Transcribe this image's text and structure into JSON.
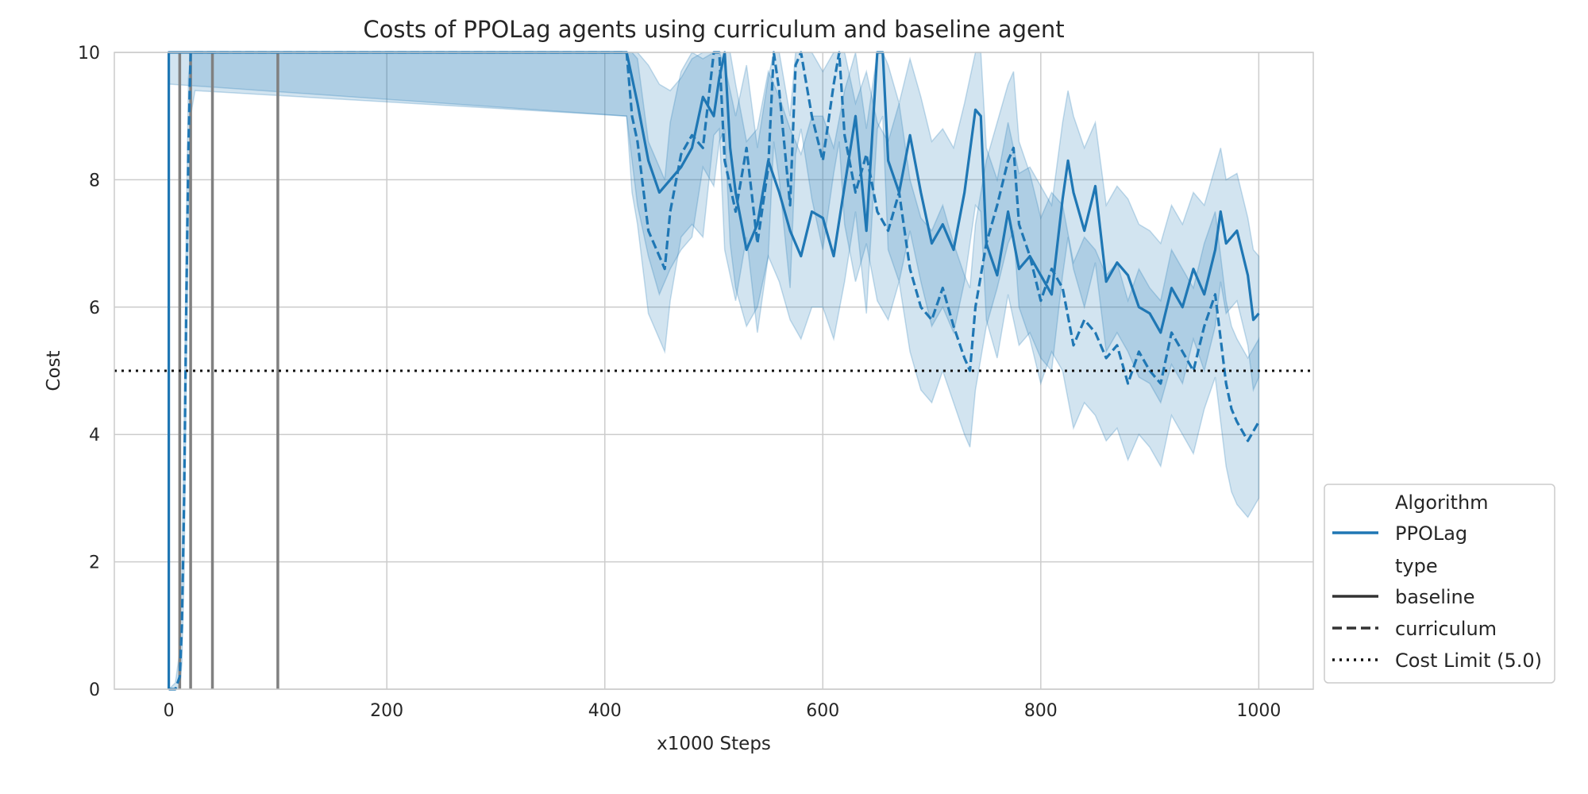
{
  "chart_data": {
    "type": "line",
    "title": "Costs of PPOLag agents using curriculum and baseline agent",
    "xlabel": "x1000 Steps",
    "ylabel": "Cost",
    "xlim": [
      -50,
      1050
    ],
    "ylim": [
      0,
      10
    ],
    "x_ticks": [
      "0",
      "200",
      "400",
      "600",
      "800",
      "1000"
    ],
    "y_ticks": [
      "0",
      "2",
      "4",
      "6",
      "8",
      "10"
    ],
    "grid": true,
    "legend_position": "lower-right outside",
    "colors": {
      "series": "#1f77b4",
      "band": "#1f77b4",
      "limit": "#111111",
      "marker": "#808080",
      "legend_dark": "#333333"
    },
    "legend": {
      "title_algorithm": "Algorithm",
      "algorithm": "PPOLag",
      "title_type": "type",
      "baseline": "baseline",
      "curriculum": "curriculum",
      "cost_limit": "Cost Limit (5.0)"
    },
    "cost_limit": 5.0,
    "vertical_markers_x": [
      10,
      20,
      40,
      100
    ],
    "series": [
      {
        "name": "baseline",
        "style": "solid",
        "x": [
          0,
          0,
          2,
          420,
          430,
          440,
          450,
          460,
          470,
          480,
          490,
          500,
          505,
          510,
          515,
          520,
          530,
          540,
          550,
          560,
          570,
          580,
          590,
          600,
          610,
          620,
          630,
          640,
          650,
          655,
          660,
          670,
          680,
          690,
          700,
          710,
          720,
          730,
          740,
          745,
          750,
          760,
          770,
          780,
          790,
          800,
          810,
          820,
          825,
          830,
          840,
          850,
          860,
          870,
          880,
          890,
          900,
          910,
          920,
          930,
          940,
          950,
          960,
          965,
          970,
          980,
          990,
          995,
          1000
        ],
        "y": [
          0,
          10,
          10,
          10,
          9.2,
          8.3,
          7.8,
          8.0,
          8.2,
          8.5,
          9.3,
          9.0,
          9.6,
          10.0,
          8.5,
          7.8,
          6.9,
          7.3,
          8.3,
          7.8,
          7.2,
          6.8,
          7.5,
          7.4,
          6.8,
          7.9,
          9.0,
          7.2,
          10.0,
          10.0,
          8.3,
          7.8,
          8.7,
          7.8,
          7.0,
          7.3,
          6.9,
          7.8,
          9.1,
          9.0,
          7.0,
          6.5,
          7.5,
          6.6,
          6.8,
          6.5,
          6.2,
          7.7,
          8.3,
          7.8,
          7.2,
          7.9,
          6.4,
          6.7,
          6.5,
          6.0,
          5.9,
          5.6,
          6.3,
          6.0,
          6.6,
          6.2,
          6.9,
          7.5,
          7.0,
          7.2,
          6.5,
          5.8,
          5.9
        ],
        "band_upper": [
          10,
          10,
          10,
          10,
          10,
          9.8,
          9.5,
          9.4,
          9.6,
          9.9,
          10,
          10,
          10,
          10,
          10,
          9.5,
          8.6,
          8.8,
          9.7,
          9.3,
          8.8,
          8.4,
          9.0,
          9.0,
          8.5,
          9.4,
          10,
          8.8,
          10,
          10,
          9.8,
          9.2,
          9.9,
          9.3,
          8.6,
          8.8,
          8.5,
          9.2,
          10,
          10,
          8.5,
          8.0,
          8.9,
          8.1,
          8.2,
          7.9,
          7.6,
          8.9,
          9.4,
          9.0,
          8.5,
          8.9,
          7.6,
          7.9,
          7.7,
          7.3,
          7.2,
          7.0,
          7.6,
          7.3,
          7.8,
          7.6,
          8.2,
          8.5,
          8.0,
          8.1,
          7.4,
          6.9,
          6.8
        ],
        "band_lower": [
          0,
          9.5,
          9.5,
          9.0,
          7.6,
          6.8,
          6.2,
          6.6,
          6.9,
          7.1,
          8.2,
          7.9,
          8.6,
          8.8,
          7.0,
          6.3,
          5.7,
          6.0,
          6.8,
          6.4,
          5.8,
          5.5,
          6.0,
          6.0,
          5.5,
          6.4,
          7.5,
          5.9,
          8.8,
          9.0,
          6.9,
          6.4,
          7.2,
          6.4,
          5.7,
          6.0,
          5.6,
          6.4,
          7.6,
          7.5,
          5.8,
          5.2,
          6.2,
          5.4,
          5.6,
          5.2,
          5.0,
          6.5,
          7.1,
          6.6,
          6.0,
          6.7,
          5.3,
          5.6,
          5.3,
          4.9,
          4.8,
          4.5,
          5.1,
          4.8,
          5.5,
          5.0,
          5.7,
          6.4,
          5.9,
          6.1,
          5.4,
          4.7,
          4.9
        ]
      },
      {
        "name": "curriculum",
        "style": "dashed",
        "x": [
          0,
          6,
          10,
          12,
          14,
          16,
          18,
          20,
          24,
          420,
          425,
          430,
          440,
          450,
          455,
          460,
          470,
          480,
          490,
          500,
          505,
          510,
          520,
          530,
          540,
          550,
          555,
          560,
          570,
          575,
          580,
          590,
          600,
          610,
          615,
          620,
          630,
          640,
          650,
          660,
          670,
          680,
          690,
          700,
          710,
          720,
          730,
          735,
          740,
          750,
          760,
          770,
          775,
          780,
          790,
          800,
          810,
          820,
          830,
          840,
          850,
          860,
          870,
          880,
          890,
          900,
          910,
          920,
          930,
          940,
          950,
          960,
          970,
          975,
          980,
          990,
          1000
        ],
        "y": [
          0,
          0,
          0.2,
          1.0,
          3.0,
          6.0,
          8.5,
          10,
          10,
          10,
          9.0,
          8.6,
          7.2,
          6.8,
          6.6,
          7.5,
          8.4,
          8.7,
          8.5,
          10.0,
          10.0,
          8.3,
          7.5,
          8.5,
          7.0,
          8.2,
          10.0,
          9.4,
          7.6,
          9.8,
          10.0,
          9.0,
          8.3,
          9.5,
          10.0,
          8.7,
          7.8,
          8.4,
          7.5,
          7.2,
          7.8,
          6.6,
          6.0,
          5.8,
          6.3,
          5.7,
          5.2,
          5.0,
          6.0,
          7.0,
          7.6,
          8.3,
          8.5,
          7.3,
          6.8,
          6.1,
          6.6,
          6.3,
          5.4,
          5.8,
          5.6,
          5.2,
          5.4,
          4.8,
          5.3,
          5.0,
          4.8,
          5.6,
          5.3,
          5.0,
          5.7,
          6.2,
          4.8,
          4.4,
          4.2,
          3.9,
          4.2
        ],
        "band_upper": [
          0,
          0.1,
          0.6,
          1.8,
          4.2,
          7.2,
          9.6,
          10,
          10,
          10,
          10,
          9.9,
          8.6,
          8.2,
          8.0,
          8.9,
          9.7,
          10,
          9.9,
          10,
          10,
          9.8,
          9.0,
          9.8,
          8.5,
          9.6,
          10,
          10,
          9.0,
          10,
          10,
          10,
          9.7,
          10,
          10,
          10,
          9.2,
          9.7,
          8.9,
          8.6,
          9.2,
          8.0,
          7.4,
          7.2,
          7.6,
          7.0,
          6.5,
          6.3,
          7.3,
          8.3,
          8.9,
          9.5,
          9.7,
          8.6,
          8.1,
          7.4,
          7.8,
          7.6,
          6.7,
          7.1,
          6.9,
          6.5,
          6.7,
          6.1,
          6.6,
          6.3,
          6.1,
          6.9,
          6.6,
          6.3,
          7.0,
          7.5,
          6.1,
          5.7,
          5.5,
          5.2,
          5.5
        ],
        "band_lower": [
          0,
          0,
          0,
          0.4,
          1.8,
          4.8,
          7.4,
          9.0,
          9.4,
          9.0,
          7.8,
          7.3,
          5.9,
          5.5,
          5.3,
          6.1,
          7.1,
          7.3,
          7.1,
          8.7,
          8.8,
          6.9,
          6.1,
          7.1,
          5.6,
          6.8,
          8.6,
          8.0,
          6.3,
          8.4,
          8.8,
          7.7,
          6.9,
          8.1,
          8.6,
          7.3,
          6.4,
          7.0,
          6.1,
          5.8,
          6.4,
          5.3,
          4.7,
          4.5,
          5.0,
          4.5,
          4.0,
          3.8,
          4.7,
          5.7,
          6.3,
          7.0,
          7.2,
          6.0,
          5.5,
          4.8,
          5.3,
          5.0,
          4.1,
          4.5,
          4.3,
          3.9,
          4.1,
          3.6,
          4.0,
          3.8,
          3.5,
          4.3,
          4.0,
          3.7,
          4.4,
          4.9,
          3.5,
          3.1,
          2.9,
          2.7,
          3.0
        ]
      }
    ]
  }
}
